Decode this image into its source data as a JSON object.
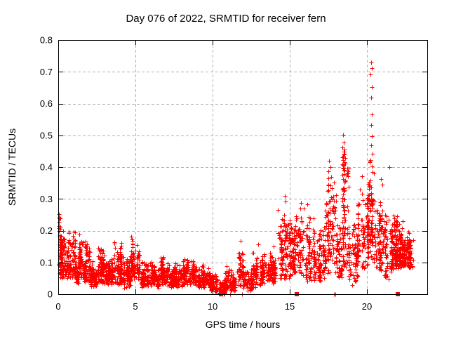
{
  "window": {
    "background": "#ffffff"
  },
  "chart_data": {
    "type": "scatter",
    "title": "Day 076 of 2022, SRMTID for receiver fern",
    "xlabel": "GPS time / hours",
    "ylabel": "SRMTID / TECUs",
    "xlim": [
      0,
      23.91
    ],
    "ylim": [
      0,
      0.8
    ],
    "xticks": [
      0,
      5,
      10,
      15,
      20
    ],
    "xtick_labels": [
      "0",
      "5",
      "10",
      "15",
      "20"
    ],
    "yticks": [
      0,
      0.1,
      0.2,
      0.3,
      0.4,
      0.5,
      0.6,
      0.7,
      0.8
    ],
    "ytick_labels": [
      "0",
      "0.1",
      "0.2",
      "0.3",
      "0.4",
      "0.5",
      "0.6",
      "0.7",
      "0.8"
    ],
    "grid": true,
    "legend": "none",
    "marker": "plus",
    "marker_color": "#ff0000",
    "grid_color": "#b0b0b0",
    "frame_color": "#000000",
    "seed": 76,
    "bands": {
      "format": [
        "x_start_hour",
        "x_end_hour",
        "y_min_tecu",
        "y_max_tecu",
        "n_points"
      ],
      "data": [
        [
          0.0,
          0.15,
          0.08,
          0.26,
          24
        ],
        [
          0.1,
          1.1,
          0.05,
          0.21,
          210
        ],
        [
          1.1,
          1.35,
          0.03,
          0.12,
          40
        ],
        [
          1.35,
          2.05,
          0.04,
          0.19,
          140
        ],
        [
          2.05,
          2.55,
          0.02,
          0.12,
          85
        ],
        [
          2.55,
          3.1,
          0.03,
          0.16,
          95
        ],
        [
          3.1,
          3.6,
          0.03,
          0.12,
          85
        ],
        [
          3.6,
          4.1,
          0.03,
          0.17,
          95
        ],
        [
          4.1,
          4.7,
          0.02,
          0.12,
          95
        ],
        [
          4.7,
          5.3,
          0.04,
          0.19,
          95
        ],
        [
          5.3,
          6.1,
          0.02,
          0.11,
          120
        ],
        [
          6.1,
          6.6,
          0.02,
          0.09,
          75
        ],
        [
          6.6,
          7.1,
          0.03,
          0.13,
          85
        ],
        [
          7.1,
          8.1,
          0.02,
          0.1,
          140
        ],
        [
          8.1,
          8.8,
          0.03,
          0.13,
          100
        ],
        [
          8.8,
          9.9,
          0.02,
          0.1,
          150
        ],
        [
          9.9,
          10.35,
          0.005,
          0.07,
          65
        ],
        [
          10.35,
          10.8,
          0.0,
          0.05,
          55
        ],
        [
          10.8,
          11.6,
          0.01,
          0.09,
          100
        ],
        [
          11.6,
          12.0,
          0.02,
          0.16,
          55
        ],
        [
          12.0,
          12.6,
          0.01,
          0.08,
          75
        ],
        [
          12.6,
          13.1,
          0.02,
          0.15,
          65
        ],
        [
          13.1,
          14.2,
          0.03,
          0.14,
          130
        ],
        [
          14.2,
          15.0,
          0.04,
          0.28,
          105
        ],
        [
          15.0,
          16.0,
          0.05,
          0.3,
          135
        ],
        [
          16.0,
          16.6,
          0.04,
          0.26,
          85
        ],
        [
          16.6,
          17.3,
          0.04,
          0.22,
          95
        ],
        [
          17.3,
          18.1,
          0.06,
          0.4,
          115
        ],
        [
          18.1,
          18.35,
          0.05,
          0.22,
          38
        ],
        [
          18.35,
          18.8,
          0.08,
          0.47,
          85
        ],
        [
          18.8,
          19.4,
          0.04,
          0.24,
          75
        ],
        [
          19.4,
          20.1,
          0.08,
          0.35,
          105
        ],
        [
          20.1,
          20.55,
          0.1,
          0.45,
          85
        ],
        [
          20.55,
          21.1,
          0.07,
          0.34,
          85
        ],
        [
          21.1,
          21.6,
          0.05,
          0.28,
          65
        ],
        [
          21.6,
          22.35,
          0.08,
          0.27,
          140
        ],
        [
          22.1,
          23.0,
          0.08,
          0.21,
          165
        ]
      ]
    },
    "outlier_points": [
      [
        20.27,
        0.73
      ],
      [
        20.3,
        0.712
      ],
      [
        20.24,
        0.692
      ],
      [
        20.33,
        0.652
      ],
      [
        20.28,
        0.618
      ],
      [
        20.3,
        0.565
      ],
      [
        20.26,
        0.532
      ],
      [
        20.32,
        0.497
      ],
      [
        20.29,
        0.468
      ],
      [
        20.35,
        0.443
      ],
      [
        20.23,
        0.421
      ],
      [
        20.31,
        0.402
      ],
      [
        20.37,
        0.385
      ],
      [
        18.45,
        0.502
      ],
      [
        18.52,
        0.478
      ],
      [
        18.42,
        0.462
      ],
      [
        18.56,
        0.455
      ],
      [
        18.48,
        0.449
      ],
      [
        18.5,
        0.44
      ],
      [
        18.44,
        0.434
      ],
      [
        18.58,
        0.428
      ],
      [
        18.47,
        0.421
      ],
      [
        18.53,
        0.415
      ],
      [
        18.41,
        0.409
      ],
      [
        18.5,
        0.404
      ],
      [
        18.46,
        0.398
      ],
      [
        18.55,
        0.392
      ],
      [
        21.47,
        0.4
      ],
      [
        19.7,
        0.372
      ],
      [
        17.55,
        0.42
      ],
      [
        17.63,
        0.401
      ],
      [
        17.5,
        0.386
      ],
      [
        17.7,
        0.368
      ],
      [
        16.15,
        0.282
      ],
      [
        15.93,
        0.27
      ],
      [
        14.66,
        0.31
      ],
      [
        14.74,
        0.292
      ],
      [
        11.82,
        0.168
      ],
      [
        12.95,
        0.158
      ],
      [
        20.92,
        0.362
      ],
      [
        21.02,
        0.345
      ],
      [
        13.95,
        0.15
      ],
      [
        21.4,
        0.047
      ],
      [
        19.05,
        0.028
      ],
      [
        0.03,
        0.252
      ],
      [
        0.05,
        0.24
      ],
      [
        0.04,
        0.228
      ],
      [
        0.06,
        0.215
      ]
    ],
    "zero_plus_hours": [
      10.45,
      10.62,
      11.12,
      11.9,
      17.88,
      17.96
    ],
    "zero_square_hours": [
      10.55,
      15.45,
      22.0
    ]
  }
}
